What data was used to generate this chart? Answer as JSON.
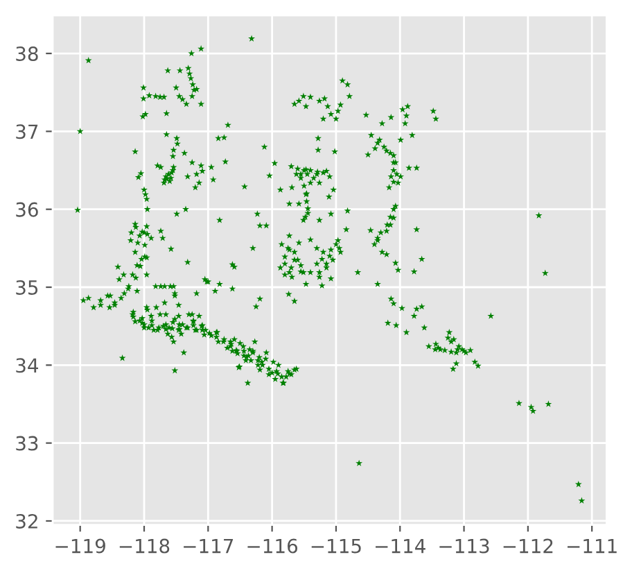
{
  "chart_data": {
    "type": "scatter",
    "marker": "star",
    "grid": true,
    "xlim": [
      -119.43,
      -110.77
    ],
    "ylim": [
      31.95,
      38.49
    ],
    "xticks": [
      {
        "value": -119,
        "label": "−119"
      },
      {
        "value": -118,
        "label": "−118"
      },
      {
        "value": -117,
        "label": "−117"
      },
      {
        "value": -116,
        "label": "−116"
      },
      {
        "value": -115,
        "label": "−115"
      },
      {
        "value": -114,
        "label": "−114"
      },
      {
        "value": -113,
        "label": "−113"
      },
      {
        "value": -112,
        "label": "−112"
      },
      {
        "value": -111,
        "label": "−111"
      }
    ],
    "yticks": [
      32,
      33,
      34,
      35,
      36,
      37,
      38
    ],
    "x": [
      -118.87,
      -119.0,
      -119.04,
      -117.26,
      -117.11,
      -117.63,
      -117.44,
      -117.31,
      -117.29,
      -117.27,
      -117.24,
      -117.22,
      -117.18,
      -117.5,
      -117.45,
      -117.4,
      -117.34,
      -117.25,
      -117.11,
      -118.01,
      -118.01,
      -117.92,
      -117.82,
      -117.75,
      -117.69,
      -117.98,
      -118.02,
      -117.65,
      -117.65,
      -117.49,
      -117.48,
      -117.54,
      -117.55,
      -117.37,
      -118.14,
      -116.84,
      -116.75,
      -116.69,
      -116.73,
      -117.25,
      -117.11,
      -116.95,
      -117.79,
      -117.74,
      -117.64,
      -117.69,
      -117.57,
      -117.54,
      -117.6,
      -117.66,
      -117.32,
      -117.18,
      -117.14,
      -117.2,
      -117.09,
      -116.92,
      -118.09,
      -118.05,
      -118.0,
      -117.98,
      -117.96,
      -117.95,
      -117.49,
      -117.35,
      -116.82,
      -118.14,
      -117.96,
      -118.21,
      -117.89,
      -117.99,
      -118.14,
      -118.07,
      -118.2,
      -118.0,
      -117.74,
      -117.71,
      -117.58,
      -118.04,
      -117.96,
      -118.11,
      -118.41,
      -117.32,
      -116.62,
      -118.18,
      -117.96,
      -118.95,
      -118.87,
      -118.79,
      -118.68,
      -118.57,
      -118.46,
      -118.54,
      -118.36,
      -118.39,
      -118.32,
      -118.25,
      -118.11,
      -117.82,
      -117.68,
      -117.54,
      -117.52,
      -118.18,
      -118.07,
      -117.93,
      -117.79,
      -117.61,
      -117.46,
      -117.32,
      -117.18,
      -117.04,
      -116.86,
      -116.75,
      -116.64,
      -116.54,
      -117.96,
      -117.75,
      -117.89,
      -117.46,
      -117.25,
      -117.14,
      -117.68,
      -117.46,
      -118.0,
      -117.7,
      -117.55,
      -117.4,
      -117.1,
      -116.95,
      -116.7,
      -117.54,
      -117.57,
      -117.38,
      -118.34,
      -117.52,
      -117.18,
      -117.05,
      -117.0,
      -116.89,
      -116.82,
      -116.62,
      -116.52,
      -116.32,
      -114.9,
      -114.82,
      -114.79,
      -115.65,
      -115.58,
      -115.51,
      -115.47,
      -115.4,
      -115.26,
      -115.18,
      -115.08,
      -115.0,
      -115.2,
      -114.93,
      -114.97,
      -115.13,
      -114.53,
      -114.28,
      -114.14,
      -113.96,
      -113.88,
      -113.92,
      -113.81,
      -113.99,
      -113.9,
      -113.48,
      -113.44,
      -114.39,
      -114.32,
      -114.21,
      -114.1,
      -114.5,
      -114.07,
      -114.14,
      -114.17,
      -114.03,
      -113.99,
      -114.1,
      -113.86,
      -113.74,
      -114.07,
      -114.1,
      -114.21,
      -114.35,
      -114.46,
      -114.28,
      -114.21,
      -114.15,
      -113.74,
      -113.66,
      -114.07,
      -114.03,
      -113.78,
      -114.66,
      -115.28,
      -115.28,
      -115.02,
      -115.96,
      -116.12,
      -116.04,
      -116.43,
      -115.62,
      -115.47,
      -115.29,
      -115.15,
      -115.4,
      -115.47,
      -115.44,
      -115.51,
      -115.73,
      -115.58,
      -115.26,
      -115.26,
      -115.87,
      -115.69,
      -115.04,
      -115.11,
      -115.08,
      -114.82,
      -115.55,
      -115.45,
      -115.5,
      -115.35,
      -116.23,
      -116.19,
      -116.09,
      -116.3,
      -116.59,
      -115.73,
      -115.73,
      -115.8,
      -115.58,
      -115.4,
      -115.55,
      -115.73,
      -115.87,
      -115.22,
      -115.08,
      -114.97,
      -114.93,
      -115.26,
      -115.4,
      -115.15,
      -114.84,
      -115.65,
      -115.3,
      -111.83,
      -111.73,
      -115.8,
      -115.69,
      -115.51,
      -115.47,
      -115.26,
      -115.08,
      -115.22,
      -114.35,
      -116.25,
      -116.19,
      -115.74,
      -115.65,
      -114.14,
      -114.1,
      -113.97,
      -114.19,
      -114.06,
      -113.9,
      -113.78,
      -113.74,
      -113.66,
      -113.62,
      -113.55,
      -113.44,
      -116.59,
      -116.45,
      -116.3,
      -116.16,
      -116.05,
      -115.91,
      -115.83,
      -115.73,
      -115.62,
      -116.51,
      -116.38,
      -116.56,
      -116.27,
      -116.09,
      -115.98,
      -116.4,
      -116.2,
      -116.0,
      -115.85,
      -116.35,
      -114.64,
      -112.58,
      -113.23,
      -113.16,
      -113.08,
      -112.97,
      -113.3,
      -113.12,
      -112.9,
      -112.83,
      -112.78,
      -113.17,
      -113.12,
      -112.14,
      -111.95,
      -111.92,
      -111.68,
      -111.21,
      -111.16,
      -113.37,
      -113.2,
      -113.03,
      -118.17,
      -118.03,
      -117.88,
      -117.66,
      -117.45,
      -117.23,
      -117.09,
      -116.87,
      -116.65,
      -116.44,
      -116.22,
      -118.17,
      -118.03,
      -117.88,
      -117.66,
      -117.45,
      -117.23,
      -117.09,
      -116.87,
      -116.65,
      -116.44,
      -116.22,
      -118.14,
      -118.0,
      -117.85,
      -117.63,
      -117.42,
      -117.2,
      -117.06,
      -116.84,
      -116.62,
      -116.41,
      -116.19,
      -117.77,
      -117.56,
      -117.34,
      -116.98,
      -116.76,
      -116.55,
      -116.33,
      -116.37,
      -116.15,
      -115.93,
      -115.75,
      -115.65,
      -115.82,
      -116.5,
      -116.3,
      -116.1,
      -115.9,
      -116.05,
      -115.95,
      -115.78,
      -115.7,
      -118.13,
      -118.03,
      -117.95,
      -118.1,
      -117.99,
      -118.06,
      -118.13,
      -118.24,
      -118.31,
      -118.53,
      -118.68,
      -118.46,
      -117.74,
      -117.59,
      -117.52,
      -117.02,
      -117.95,
      -117.81,
      -117.66,
      -117.52,
      -117.3,
      -117.23,
      -115.7,
      -115.6,
      -115.5,
      -115.4,
      -115.3,
      -115.2,
      -115.1,
      -115.55,
      -115.46,
      -115.46,
      -115.44,
      -115.48,
      -115.85,
      -115.75,
      -115.65,
      -115.6,
      -115.7,
      -115.55,
      -115.8,
      -115.3,
      -115.2,
      -115.1,
      -115.0,
      -115.15,
      -115.05,
      -114.95,
      -114.45,
      -114.35,
      -114.25,
      -114.15,
      -114.1,
      -114.05,
      -114.1,
      -114.1,
      -114.15,
      -114.2,
      -114.3,
      -114.35,
      -114.4,
      -117.62,
      -117.58,
      -117.68,
      -117.55,
      -113.25,
      -113.2,
      -113.1,
      -113.0,
      -113.4,
      -113.45
    ],
    "series": [
      {
        "color": "#008000",
        "values": [
          37.91,
          37.0,
          35.99,
          38.0,
          38.06,
          37.78,
          37.78,
          37.81,
          37.74,
          37.68,
          37.6,
          37.53,
          37.54,
          37.56,
          37.45,
          37.41,
          37.35,
          37.45,
          37.35,
          37.56,
          37.42,
          37.46,
          37.45,
          37.44,
          37.44,
          37.22,
          37.19,
          37.23,
          36.96,
          36.91,
          36.84,
          36.76,
          36.68,
          36.72,
          36.74,
          36.91,
          36.92,
          37.08,
          36.61,
          36.6,
          36.56,
          36.54,
          36.56,
          36.54,
          36.39,
          36.34,
          36.47,
          36.54,
          36.36,
          36.42,
          36.42,
          36.45,
          36.34,
          36.28,
          36.49,
          36.38,
          36.41,
          36.46,
          36.25,
          36.19,
          36.13,
          36.0,
          35.94,
          36.0,
          35.86,
          35.81,
          35.78,
          35.6,
          35.63,
          35.54,
          35.45,
          35.66,
          35.7,
          35.7,
          35.72,
          35.63,
          35.49,
          35.36,
          35.38,
          35.28,
          35.26,
          35.32,
          35.29,
          35.16,
          35.16,
          34.83,
          34.86,
          34.74,
          34.77,
          34.89,
          34.8,
          34.74,
          34.86,
          35.1,
          35.16,
          34.98,
          34.95,
          35.01,
          35.01,
          35.01,
          34.89,
          34.65,
          34.57,
          34.48,
          34.45,
          34.48,
          34.45,
          34.48,
          34.45,
          34.45,
          34.42,
          34.33,
          34.27,
          34.15,
          34.74,
          34.65,
          34.63,
          34.63,
          34.65,
          34.63,
          34.8,
          34.77,
          34.52,
          34.5,
          34.55,
          34.52,
          34.5,
          34.38,
          34.22,
          34.3,
          34.36,
          34.16,
          34.09,
          33.93,
          34.92,
          35.1,
          35.07,
          34.95,
          35.04,
          34.98,
          33.97,
          38.19,
          37.65,
          37.6,
          37.45,
          37.35,
          37.39,
          37.45,
          37.32,
          37.44,
          37.39,
          37.42,
          37.22,
          37.16,
          37.16,
          37.34,
          37.26,
          37.32,
          37.21,
          37.1,
          37.18,
          37.28,
          37.32,
          37.1,
          36.95,
          36.89,
          37.2,
          37.26,
          37.16,
          36.78,
          36.89,
          36.75,
          36.69,
          36.7,
          36.6,
          36.42,
          36.28,
          36.34,
          36.42,
          36.5,
          36.53,
          36.53,
          36.04,
          35.89,
          35.72,
          35.63,
          35.73,
          35.45,
          35.42,
          35.8,
          35.74,
          35.36,
          35.31,
          35.22,
          35.2,
          35.19,
          36.91,
          36.76,
          36.74,
          36.59,
          36.8,
          36.43,
          36.29,
          36.45,
          36.51,
          36.48,
          36.49,
          36.34,
          36.19,
          36.01,
          35.86,
          36.07,
          36.07,
          35.86,
          36.34,
          36.25,
          36.28,
          36.25,
          36.16,
          35.94,
          35.98,
          36.4,
          36.45,
          36.3,
          36.4,
          35.94,
          35.79,
          35.79,
          35.5,
          35.26,
          35.66,
          35.48,
          35.39,
          35.57,
          35.61,
          35.28,
          35.19,
          35.25,
          35.36,
          35.48,
          35.6,
          35.45,
          35.19,
          35.19,
          35.25,
          35.74,
          35.35,
          35.3,
          35.92,
          35.18,
          35.16,
          35.13,
          35.19,
          35.04,
          35.13,
          35.11,
          35.02,
          35.04,
          34.75,
          34.85,
          34.91,
          34.82,
          34.85,
          34.79,
          34.73,
          34.54,
          34.51,
          34.42,
          34.63,
          34.72,
          34.75,
          34.48,
          34.24,
          34.27,
          34.33,
          34.24,
          34.16,
          34.04,
          33.95,
          33.89,
          33.77,
          33.89,
          33.95,
          33.98,
          33.77,
          34.19,
          34.3,
          34.16,
          34.04,
          34.1,
          34.1,
          33.9,
          33.85,
          34.2,
          32.74,
          34.63,
          34.42,
          34.33,
          34.24,
          34.16,
          34.19,
          34.16,
          34.19,
          34.04,
          33.99,
          33.95,
          34.02,
          33.51,
          33.46,
          33.41,
          33.5,
          32.47,
          32.26,
          34.2,
          34.17,
          34.2,
          34.62,
          34.54,
          34.51,
          34.46,
          34.46,
          34.51,
          34.45,
          34.36,
          34.24,
          34.12,
          34.0,
          34.68,
          34.6,
          34.57,
          34.52,
          34.52,
          34.57,
          34.51,
          34.42,
          34.3,
          34.18,
          34.06,
          34.56,
          34.48,
          34.45,
          34.4,
          34.4,
          34.45,
          34.39,
          34.3,
          34.18,
          34.06,
          33.94,
          34.48,
          34.47,
          34.48,
          34.41,
          34.3,
          34.18,
          34.06,
          34.12,
          34.0,
          33.92,
          33.92,
          33.94,
          33.77,
          34.28,
          34.18,
          34.08,
          34.0,
          33.88,
          33.82,
          33.85,
          33.88,
          35.77,
          35.71,
          35.68,
          35.57,
          35.39,
          35.27,
          35.12,
          35.01,
          34.92,
          34.89,
          34.83,
          34.77,
          35.01,
          35.01,
          34.92,
          35.07,
          34.71,
          34.74,
          34.65,
          34.59,
          34.65,
          34.56,
          36.55,
          36.52,
          36.5,
          36.5,
          36.45,
          36.47,
          36.42,
          36.45,
          36.2,
          36.1,
          35.95,
          35.9,
          35.55,
          35.5,
          35.45,
          35.35,
          35.25,
          35.2,
          35.3,
          35.5,
          35.45,
          35.4,
          35.55,
          35.3,
          35.35,
          35.5,
          36.95,
          36.85,
          36.8,
          36.72,
          36.6,
          36.45,
          36.35,
          36.0,
          35.9,
          35.8,
          35.7,
          35.6,
          35.55,
          36.45,
          36.4,
          36.38,
          36.5,
          34.35,
          34.3,
          34.2,
          34.18,
          34.22,
          34.2
        ]
      }
    ]
  }
}
